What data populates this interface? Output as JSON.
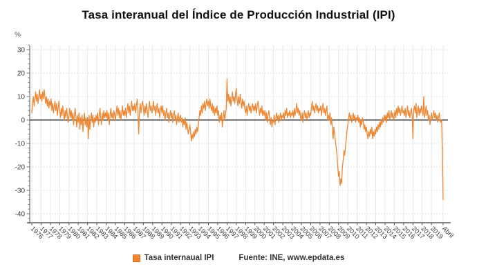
{
  "chart_data": {
    "type": "line",
    "title": "Tasa interanual del Índice de Producción Industrial (IPI)",
    "xlabel": "",
    "ylabel": "%",
    "series_name": "Tasa internaual IPI",
    "frequency": "monthly",
    "x_start": "1976-01",
    "x_end": "2020-04",
    "x_tick_labels": [
      "1976",
      "1977",
      "1978",
      "1979",
      "1980",
      "1981",
      "1982",
      "1983",
      "1984",
      "1985",
      "1986",
      "1987",
      "1988",
      "1989",
      "1990",
      "1991",
      "1992",
      "1993",
      "1994",
      "1995",
      "1996",
      "1997",
      "1998",
      "1999",
      "2000",
      "2001",
      "2002",
      "2003",
      "2004",
      "2005",
      "2006",
      "2007",
      "2008",
      "2009",
      "2010",
      "2011",
      "2012",
      "2013",
      "2014",
      "2015",
      "2016",
      "2017",
      "2018",
      "2019",
      "Abril"
    ],
    "y_ticks": [
      30,
      20,
      10,
      0,
      -10,
      -20,
      -30,
      -40
    ],
    "ylim": [
      -44,
      33
    ],
    "grid": true,
    "legend": {
      "entries": [
        "Tasa internaual IPI"
      ],
      "position": "bottom"
    },
    "line_color": "#ED8733",
    "values": [
      3,
      7,
      10,
      6,
      9,
      12,
      8,
      11,
      7,
      10,
      13,
      9,
      11,
      8,
      12,
      9,
      13,
      10,
      7,
      10,
      6,
      9,
      5,
      8,
      6,
      9,
      4,
      7,
      3,
      6,
      8,
      4,
      7,
      2,
      5,
      8,
      4,
      1,
      5,
      2,
      6,
      3,
      0,
      4,
      1,
      5,
      2,
      -1,
      2,
      5,
      1,
      4,
      0,
      3,
      -2,
      2,
      5,
      1,
      -3,
      2,
      -1,
      3,
      -4,
      1,
      -2,
      2,
      -5,
      0,
      3,
      -2,
      1,
      -3,
      1,
      -8,
      2,
      -4,
      0,
      3,
      -1,
      2,
      -3,
      1,
      -1,
      2,
      0,
      3,
      -2,
      2,
      5,
      1,
      -2,
      3,
      0,
      4,
      1,
      3,
      1,
      4,
      0,
      3,
      -2,
      2,
      5,
      1,
      3,
      0,
      4,
      2,
      0,
      3,
      6,
      2,
      5,
      1,
      4,
      0,
      3,
      6,
      2,
      4,
      2,
      5,
      1,
      4,
      7,
      3,
      6,
      2,
      5,
      8,
      4,
      6,
      4,
      7,
      3,
      6,
      9,
      5,
      -6,
      4,
      7,
      3,
      6,
      8,
      5,
      2,
      6,
      3,
      7,
      4,
      1,
      5,
      8,
      4,
      6,
      3,
      5,
      8,
      4,
      6,
      2,
      5,
      7,
      3,
      5,
      1,
      4,
      6,
      3,
      6,
      2,
      4,
      0,
      3,
      5,
      1,
      3,
      -1,
      2,
      4,
      1,
      3,
      -1,
      2,
      4,
      0,
      2,
      -2,
      1,
      3,
      -1,
      1,
      2,
      -1,
      1,
      -3,
      0,
      -2,
      1,
      -4,
      -1,
      -3,
      -6,
      -4,
      -2,
      -5,
      -9,
      -6,
      -8,
      -5,
      -7,
      -4,
      -6,
      -3,
      -5,
      -2,
      1,
      4,
      2,
      6,
      3,
      7,
      5,
      8,
      4,
      7,
      9,
      6,
      8,
      5,
      9,
      6,
      4,
      7,
      3,
      6,
      2,
      5,
      3,
      6,
      2,
      4,
      -1,
      2,
      0,
      3,
      -3,
      1,
      4,
      0,
      2,
      5,
      17.5,
      8,
      11,
      7,
      10,
      6,
      9,
      12,
      8,
      10,
      7,
      11,
      13.5,
      9,
      6,
      10,
      7,
      11,
      8,
      5,
      9,
      6,
      8,
      5,
      3,
      6,
      2,
      5,
      7,
      4,
      6,
      3,
      5,
      7,
      4,
      6,
      4,
      7,
      3,
      6,
      8,
      5,
      2,
      5,
      3,
      6,
      2,
      4,
      2,
      4,
      0,
      3,
      -1,
      2,
      4,
      1,
      -2,
      1,
      -3,
      0,
      -1,
      2,
      -2,
      1,
      3,
      0,
      2,
      -1,
      1,
      3,
      0,
      2,
      1,
      3,
      0,
      4,
      2,
      5,
      1,
      3,
      2,
      4,
      1,
      3,
      2,
      4,
      1,
      5,
      2,
      4,
      7,
      3,
      5,
      2,
      4,
      1,
      0,
      3,
      -1,
      2,
      4,
      1,
      3,
      0,
      2,
      4,
      1,
      3,
      2,
      5,
      8,
      4,
      6,
      3,
      5,
      7,
      4,
      6,
      3,
      5,
      4,
      6,
      2,
      5,
      7,
      3,
      5,
      2,
      4,
      6,
      0,
      2,
      0,
      3,
      -2,
      1,
      -4,
      -8,
      -3,
      -6,
      -9,
      -12,
      -15,
      -20,
      -24,
      -22,
      -28,
      -25,
      -27,
      -20,
      -17,
      -13,
      -15,
      -11,
      -8,
      -4,
      -2,
      1,
      3,
      0,
      2,
      -1,
      1,
      3,
      0,
      2,
      -1,
      1,
      0,
      2,
      -1,
      1,
      -3,
      0,
      -2,
      1,
      -1,
      -4,
      -2,
      -5,
      -3,
      -6,
      -8,
      -5,
      -7,
      -4,
      -6,
      -3,
      -8,
      -5,
      -7,
      -4,
      -6,
      -3,
      -5,
      -2,
      -4,
      -1,
      -3,
      0,
      -2,
      1,
      -1,
      2,
      0,
      2,
      -1,
      3,
      1,
      4,
      0,
      2,
      4,
      1,
      3,
      0,
      2,
      4,
      1,
      5,
      2,
      6,
      3,
      5,
      2,
      4,
      6,
      3,
      4,
      2,
      5,
      1,
      3,
      6,
      2,
      4,
      1,
      3,
      5,
      2,
      -8,
      4,
      6,
      3,
      7,
      1,
      4,
      6,
      2,
      5,
      3,
      6,
      4,
      2,
      10,
      1,
      3,
      6,
      2,
      4,
      0,
      2,
      -2,
      1,
      3,
      0,
      2,
      4,
      1,
      3,
      0,
      2,
      -1,
      1,
      3,
      0,
      -1,
      0,
      -13,
      -34
    ]
  },
  "footer": {
    "source": "Fuente: INE, www.epdata.es"
  }
}
